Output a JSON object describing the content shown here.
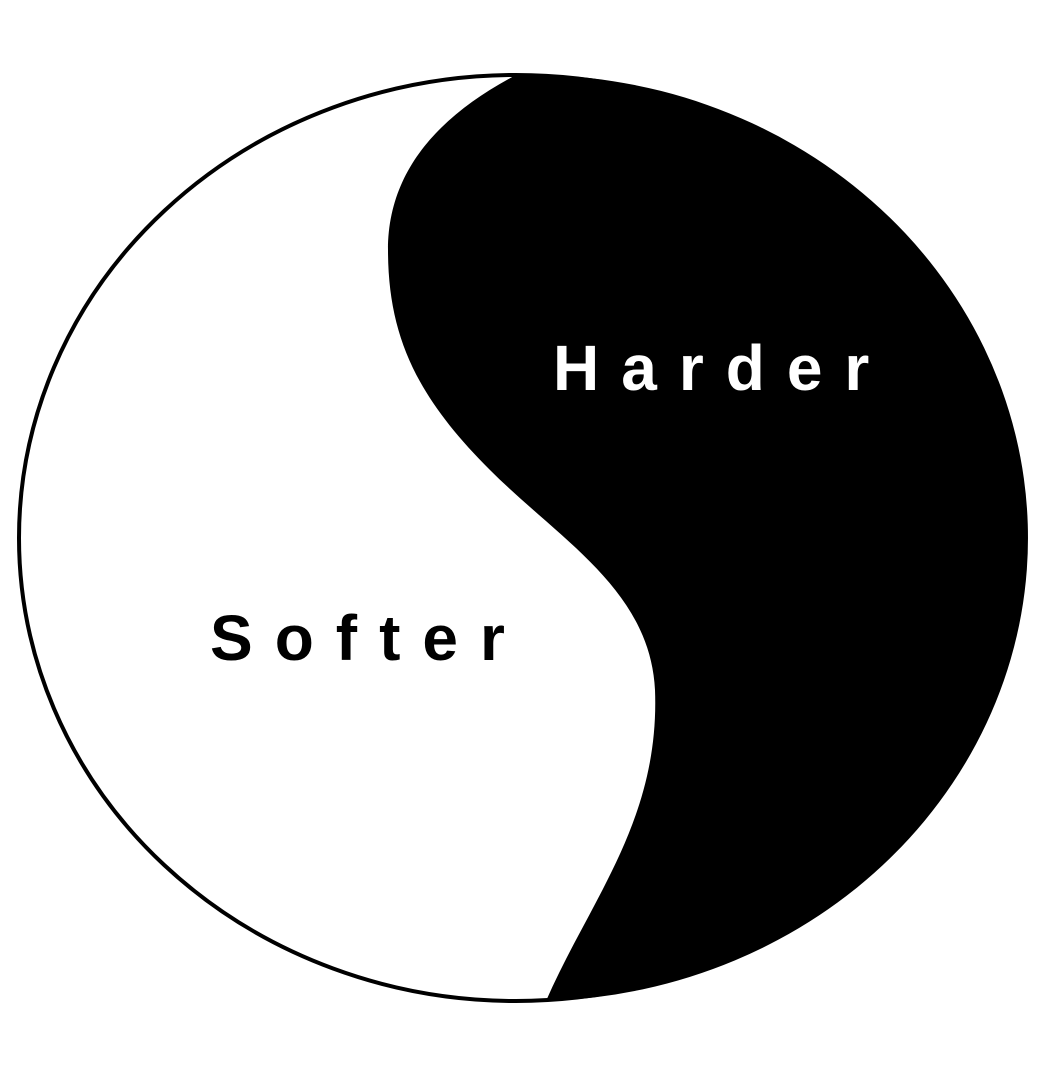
{
  "diagram": {
    "halves": [
      {
        "id": "left",
        "label": "Softer",
        "fill": "#ffffff",
        "text_color": "#000000"
      },
      {
        "id": "right",
        "label": "Harder",
        "fill": "#000000",
        "text_color": "#ffffff"
      }
    ],
    "outline_color": "#000000"
  }
}
